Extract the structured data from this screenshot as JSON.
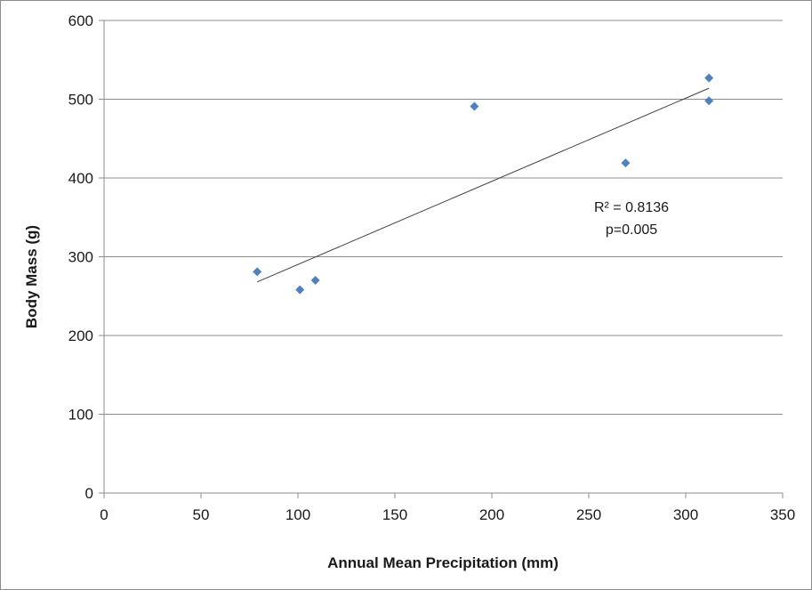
{
  "chart_data": {
    "type": "scatter",
    "xlabel": "Annual Mean Precipitation (mm)",
    "ylabel": "Body Mass (g)",
    "xlim": [
      0,
      350
    ],
    "ylim": [
      0,
      600
    ],
    "xticks": [
      0,
      50,
      100,
      150,
      200,
      250,
      300,
      350
    ],
    "yticks": [
      0,
      100,
      200,
      300,
      400,
      500,
      600
    ],
    "grid": "horizontal",
    "legend": "none",
    "marker": "diamond",
    "marker_color": "#4f81bd",
    "series": [
      {
        "points": [
          {
            "x": 79,
            "y": 281
          },
          {
            "x": 101,
            "y": 258
          },
          {
            "x": 109,
            "y": 270
          },
          {
            "x": 191,
            "y": 491
          },
          {
            "x": 269,
            "y": 419
          },
          {
            "x": 312,
            "y": 527
          },
          {
            "x": 312,
            "y": 498
          }
        ]
      }
    ],
    "trendline": {
      "type": "linear",
      "from": {
        "x": 79,
        "y": 268
      },
      "to": {
        "x": 312,
        "y": 514
      },
      "color": "#404040"
    },
    "annotations": [
      "R² = 0.8136",
      "p=0.005"
    ]
  }
}
